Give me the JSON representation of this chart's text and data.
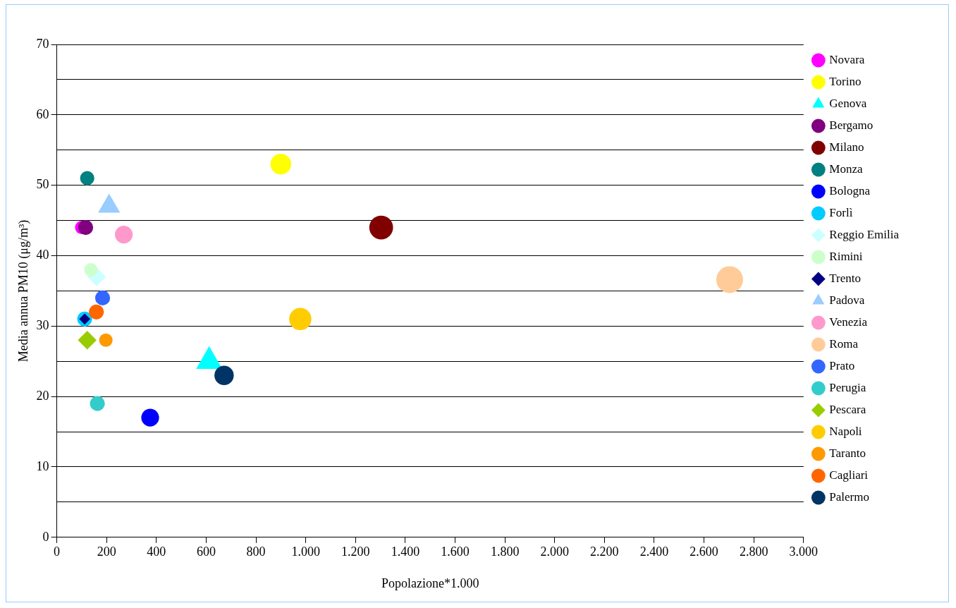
{
  "chart_data": {
    "type": "bubble",
    "xlabel": "Popolazione*1.000",
    "ylabel": "Media annua PM10 (μg/m³)",
    "xlim": [
      0,
      3000
    ],
    "xticks": [
      0,
      200,
      400,
      600,
      800,
      {
        "value": 1000,
        "label": "1.000"
      },
      {
        "value": 1200,
        "label": "1.200"
      },
      {
        "value": 1400,
        "label": "1.400"
      },
      {
        "value": 1600,
        "label": "1.600"
      },
      {
        "value": 1800,
        "label": "1.800"
      },
      {
        "value": 2000,
        "label": "2.000"
      },
      {
        "value": 2200,
        "label": "2.200"
      },
      {
        "value": 2400,
        "label": "2.400"
      },
      {
        "value": 2600,
        "label": "2.600"
      },
      {
        "value": 2800,
        "label": "2.800"
      },
      {
        "value": 3000,
        "label": "3.000"
      }
    ],
    "ylim": [
      0,
      70
    ],
    "yticks": [
      0,
      {
        "value": 5,
        "label": null
      },
      10,
      {
        "value": 15,
        "label": null
      },
      20,
      {
        "value": 25,
        "label": null
      },
      30,
      {
        "value": 35,
        "label": null
      },
      40,
      {
        "value": 45,
        "label": null
      },
      50,
      {
        "value": 55,
        "label": null
      },
      60,
      {
        "value": 65,
        "label": null
      },
      70
    ],
    "grid": "y",
    "legend": "right",
    "marker": "circle",
    "series": [
      {
        "name": "Novara",
        "color": "#ff00ff",
        "x": [
          100
        ],
        "values": [
          44
        ],
        "sizes": [
          0.25
        ]
      },
      {
        "name": "Torino",
        "color": "#ffff00",
        "x": [
          900
        ],
        "values": [
          53
        ],
        "sizes": [
          0.6
        ]
      },
      {
        "name": "Genova",
        "color": "#00ffff",
        "marker": "triangle",
        "x": [
          612
        ],
        "values": [
          25
        ],
        "sizes": [
          0.52
        ]
      },
      {
        "name": "Bergamo",
        "color": "#800080",
        "x": [
          116
        ],
        "values": [
          44
        ],
        "sizes": [
          0.31
        ]
      },
      {
        "name": "Milano",
        "color": "#800000",
        "x": [
          1303
        ],
        "values": [
          44
        ],
        "sizes": [
          0.79
        ]
      },
      {
        "name": "Monza",
        "color": "#008080",
        "x": [
          122
        ],
        "values": [
          51
        ],
        "sizes": [
          0.28
        ]
      },
      {
        "name": "Bologna",
        "color": "#0000ff",
        "x": [
          375
        ],
        "values": [
          17
        ],
        "sizes": [
          0.44
        ]
      },
      {
        "name": "Forlì",
        "color": "#00ccff",
        "x": [
          112
        ],
        "values": [
          31
        ],
        "sizes": [
          0.31
        ]
      },
      {
        "name": "Reggio Emilia",
        "color": "#ccffff",
        "marker": "diamond",
        "x": [
          160
        ],
        "values": [
          37
        ],
        "sizes": [
          0.31
        ]
      },
      {
        "name": "Rimini",
        "color": "#ccffcc",
        "x": [
          137
        ],
        "values": [
          38
        ],
        "sizes": [
          0.25
        ]
      },
      {
        "name": "Trento",
        "color": "#000080",
        "marker": "diamond",
        "x": [
          112
        ],
        "values": [
          31
        ],
        "sizes": [
          0.11
        ]
      },
      {
        "name": "Padova",
        "color": "#99ccff",
        "marker": "triangle",
        "x": [
          210
        ],
        "values": [
          47
        ],
        "sizes": [
          0.37
        ]
      },
      {
        "name": "Venezia",
        "color": "#ff99cc",
        "x": [
          269
        ],
        "values": [
          43
        ],
        "sizes": [
          0.44
        ]
      },
      {
        "name": "Roma",
        "color": "#ffcc99",
        "x": [
          2703
        ],
        "values": [
          36.6
        ],
        "sizes": [
          1
        ]
      },
      {
        "name": "Prato",
        "color": "#3366ff",
        "x": [
          184
        ],
        "values": [
          34
        ],
        "sizes": [
          0.31
        ]
      },
      {
        "name": "Perugia",
        "color": "#33cccc",
        "x": [
          163
        ],
        "values": [
          19
        ],
        "sizes": [
          0.31
        ]
      },
      {
        "name": "Pescara",
        "color": "#99cc00",
        "marker": "diamond",
        "x": [
          122
        ],
        "values": [
          28
        ],
        "sizes": [
          0.31
        ]
      },
      {
        "name": "Napoli",
        "color": "#ffcc00",
        "x": [
          978
        ],
        "values": [
          31
        ],
        "sizes": [
          0.69
        ]
      },
      {
        "name": "Taranto",
        "color": "#ff9900",
        "x": [
          197
        ],
        "values": [
          28
        ],
        "sizes": [
          0.25
        ]
      },
      {
        "name": "Cagliari",
        "color": "#ff6600",
        "x": [
          159
        ],
        "values": [
          32
        ],
        "sizes": [
          0.31
        ]
      },
      {
        "name": "Palermo",
        "color": "#003366",
        "x": [
          672
        ],
        "values": [
          23
        ],
        "sizes": [
          0.52
        ]
      }
    ]
  }
}
